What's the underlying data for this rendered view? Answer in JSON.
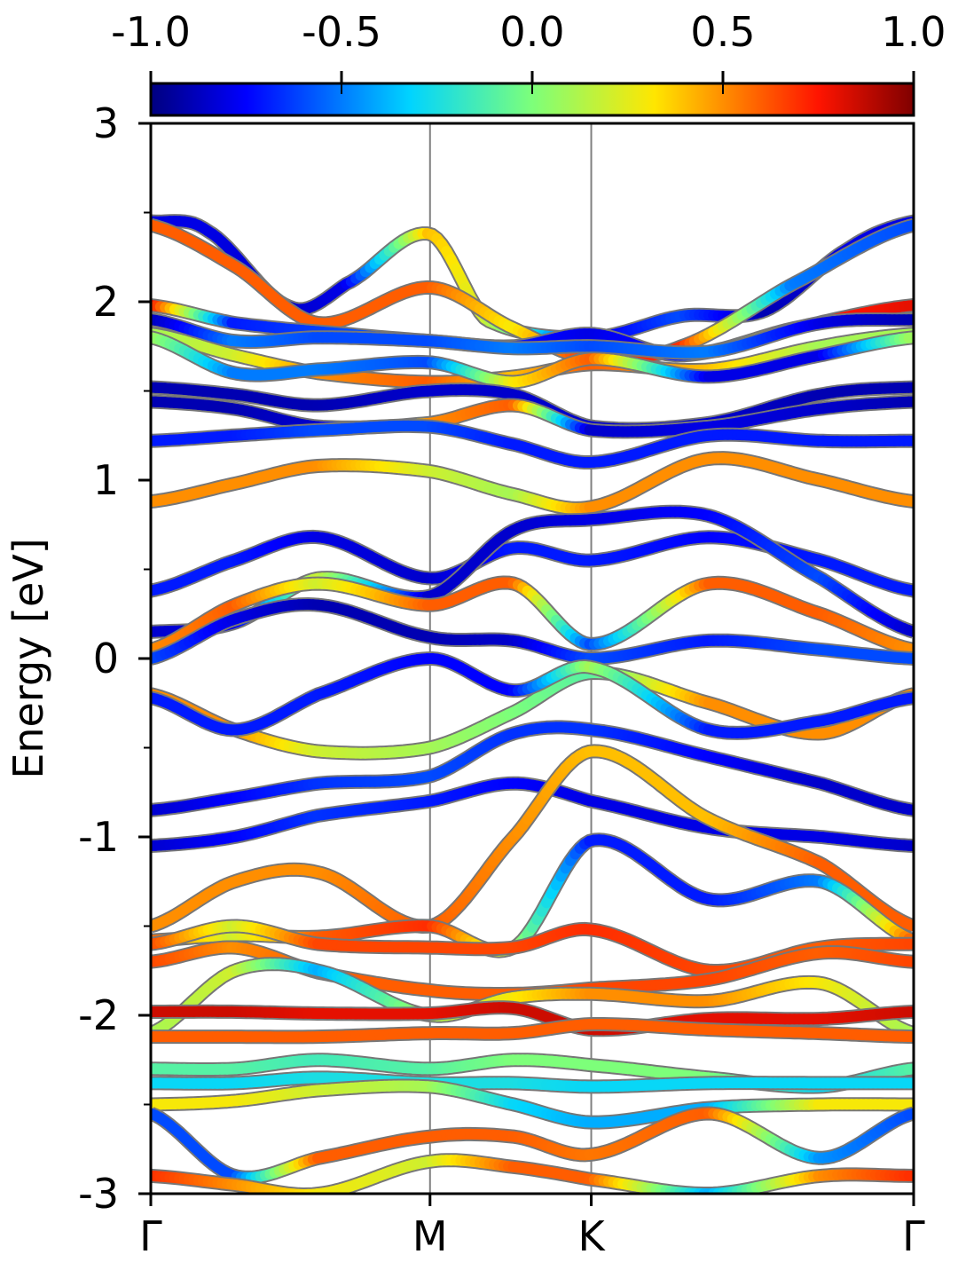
{
  "chart_data": {
    "type": "line",
    "ylabel": "Energy [eV]",
    "xlabel": "",
    "ylim": [
      -3,
      3
    ],
    "yticks": [
      "3",
      "2",
      "1",
      "0",
      "-1",
      "-2",
      "-3"
    ],
    "ytick_values": [
      3,
      2,
      1,
      0,
      -1,
      -2,
      -3
    ],
    "minor_ytick_step": 0.5,
    "kpath": {
      "labels": [
        "Γ",
        "M",
        "K",
        "Γ"
      ],
      "positions": [
        0,
        1,
        1.5774,
        2.7321
      ]
    },
    "colorbar": {
      "colormap": "jet",
      "range": [
        -1.0,
        1.0
      ],
      "ticks": [
        "-1.0",
        "-0.5",
        "0.0",
        "0.5",
        "1.0"
      ],
      "tick_values": [
        -1.0,
        -0.5,
        0.0,
        0.5,
        1.0
      ],
      "position": "top"
    },
    "series": [
      {
        "k": [
          0,
          0.2,
          0.5,
          0.7,
          1,
          1.2,
          1.5774,
          1.9,
          2.2,
          2.5,
          2.7321
        ],
        "energy": [
          2.45,
          2.4,
          1.97,
          2.1,
          2.38,
          1.9,
          1.8,
          1.92,
          1.95,
          2.3,
          2.45
        ],
        "projection": [
          -0.8,
          -0.8,
          -0.85,
          -0.8,
          0.4,
          0.2,
          -0.8,
          -0.6,
          -0.9,
          -0.8,
          -0.8
        ]
      },
      {
        "k": [
          0,
          0.3,
          0.6,
          1,
          1.3,
          1.5774,
          1.9,
          2.3,
          2.7321
        ],
        "energy": [
          2.43,
          2.2,
          1.88,
          2.08,
          1.85,
          1.68,
          1.75,
          2.1,
          2.43
        ],
        "projection": [
          0.6,
          0.6,
          0.6,
          0.6,
          0.3,
          0.7,
          0.7,
          -0.5,
          -0.6
        ]
      },
      {
        "k": [
          0,
          0.3,
          0.7,
          1,
          1.3,
          1.5774,
          1.9,
          2.3,
          2.7321
        ],
        "energy": [
          1.98,
          1.88,
          1.82,
          1.78,
          1.75,
          1.82,
          1.7,
          1.85,
          1.98
        ],
        "projection": [
          0.8,
          -0.7,
          -0.6,
          -0.6,
          -0.7,
          -0.8,
          -0.7,
          0.7,
          0.8
        ]
      },
      {
        "k": [
          0,
          0.3,
          0.6,
          1,
          1.3,
          1.5774,
          2,
          2.4,
          2.7321
        ],
        "energy": [
          1.9,
          1.78,
          1.8,
          1.78,
          1.74,
          1.75,
          1.72,
          1.88,
          1.9
        ],
        "projection": [
          -0.9,
          -0.5,
          -0.6,
          -0.6,
          -0.5,
          -0.6,
          -0.5,
          -0.8,
          -0.9
        ]
      },
      {
        "k": [
          0,
          0.3,
          0.6,
          1,
          1.3,
          1.5774,
          2,
          2.4,
          2.7321
        ],
        "energy": [
          1.82,
          1.7,
          1.6,
          1.55,
          1.58,
          1.65,
          1.62,
          1.75,
          1.82
        ],
        "projection": [
          0.1,
          0.2,
          0.5,
          0.6,
          0.4,
          0.6,
          0.4,
          0.1,
          0.1
        ]
      },
      {
        "k": [
          0,
          0.3,
          0.6,
          1,
          1.3,
          1.5774,
          2,
          2.4,
          2.7321
        ],
        "energy": [
          1.8,
          1.6,
          1.62,
          1.66,
          1.55,
          1.68,
          1.58,
          1.7,
          1.8
        ],
        "projection": [
          0.1,
          -0.5,
          -0.5,
          -0.6,
          0.3,
          0.6,
          -0.8,
          -0.8,
          0.1
        ]
      },
      {
        "k": [
          0,
          0.3,
          0.6,
          1,
          1.3,
          1.5774,
          2,
          2.4,
          2.7321
        ],
        "energy": [
          1.52,
          1.48,
          1.42,
          1.5,
          1.48,
          1.3,
          1.32,
          1.48,
          1.52
        ],
        "projection": [
          -0.9,
          -0.9,
          -0.9,
          -0.85,
          -0.85,
          -0.85,
          -0.85,
          -0.9,
          -0.9
        ]
      },
      {
        "k": [
          0,
          0.3,
          0.6,
          1,
          1.3,
          1.5774,
          2,
          2.4,
          2.7321
        ],
        "energy": [
          1.44,
          1.4,
          1.3,
          1.32,
          1.42,
          1.28,
          1.3,
          1.4,
          1.44
        ],
        "projection": [
          -0.9,
          -0.9,
          -0.85,
          0.5,
          0.6,
          -0.85,
          -0.8,
          -0.85,
          -0.9
        ]
      },
      {
        "k": [
          0,
          0.3,
          0.6,
          1,
          1.3,
          1.5774,
          2,
          2.4,
          2.7321
        ],
        "energy": [
          1.22,
          1.25,
          1.28,
          1.3,
          1.2,
          1.1,
          1.25,
          1.22,
          1.22
        ],
        "projection": [
          -0.7,
          -0.7,
          -0.6,
          -0.6,
          -0.7,
          -0.7,
          -0.7,
          -0.7,
          -0.7
        ]
      },
      {
        "k": [
          0,
          0.3,
          0.6,
          1,
          1.3,
          1.5774,
          2,
          2.4,
          2.7321
        ],
        "energy": [
          0.88,
          0.98,
          1.08,
          1.05,
          0.92,
          0.85,
          1.12,
          1.0,
          0.88
        ],
        "projection": [
          0.5,
          0.5,
          0.5,
          0.2,
          0.1,
          0.5,
          0.5,
          0.5,
          0.5
        ]
      },
      {
        "k": [
          0,
          0.3,
          0.6,
          1,
          1.3,
          1.5774,
          2,
          2.4,
          2.7321
        ],
        "energy": [
          0.38,
          0.55,
          0.68,
          0.45,
          0.62,
          0.55,
          0.68,
          0.55,
          0.38
        ],
        "projection": [
          -0.7,
          -0.7,
          -0.8,
          -0.85,
          -0.7,
          -0.7,
          -0.75,
          -0.7,
          -0.7
        ]
      },
      {
        "k": [
          0,
          0.3,
          0.6,
          1,
          1.3,
          1.5774,
          2,
          2.4,
          2.7321
        ],
        "energy": [
          0.15,
          0.2,
          0.45,
          0.35,
          0.72,
          0.78,
          0.8,
          0.45,
          0.15
        ],
        "projection": [
          -0.85,
          -0.8,
          0.2,
          -0.85,
          -0.85,
          -0.8,
          -0.75,
          -0.6,
          -0.85
        ]
      },
      {
        "k": [
          0,
          0.3,
          0.6,
          1,
          1.3,
          1.5774,
          2,
          2.4,
          2.7321
        ],
        "energy": [
          0.05,
          0.3,
          0.42,
          0.3,
          0.42,
          0.08,
          0.42,
          0.25,
          0.05
        ],
        "projection": [
          0.5,
          0.6,
          0.2,
          0.6,
          0.6,
          -0.6,
          0.6,
          0.6,
          0.5
        ]
      },
      {
        "k": [
          0,
          0.3,
          0.6,
          1,
          1.3,
          1.5774,
          2,
          2.4,
          2.7321
        ],
        "energy": [
          0.0,
          0.22,
          0.3,
          0.12,
          0.1,
          0.0,
          0.1,
          0.05,
          0.0
        ],
        "projection": [
          -0.6,
          -0.8,
          -0.9,
          -0.9,
          -0.85,
          -0.6,
          -0.7,
          -0.6,
          -0.6
        ]
      },
      {
        "k": [
          0,
          0.3,
          0.6,
          1,
          1.3,
          1.5774,
          2,
          2.4,
          2.7321
        ],
        "energy": [
          -0.2,
          -0.4,
          -0.52,
          -0.5,
          -0.3,
          -0.08,
          -0.25,
          -0.42,
          -0.2
        ],
        "projection": [
          0.5,
          0.5,
          0.2,
          0.1,
          0.0,
          -0.1,
          0.5,
          0.5,
          0.5
        ]
      },
      {
        "k": [
          0,
          0.3,
          0.6,
          1,
          1.3,
          1.5774,
          2,
          2.4,
          2.7321
        ],
        "energy": [
          -0.22,
          -0.4,
          -0.2,
          0.0,
          -0.18,
          -0.05,
          -0.4,
          -0.35,
          -0.22
        ],
        "projection": [
          -0.7,
          -0.7,
          -0.7,
          -0.75,
          -0.75,
          0.1,
          -0.7,
          -0.7,
          -0.7
        ]
      },
      {
        "k": [
          0,
          0.3,
          0.6,
          1,
          1.3,
          1.5774,
          2,
          2.4,
          2.7321
        ],
        "energy": [
          -0.85,
          -0.78,
          -0.7,
          -0.66,
          -0.42,
          -0.4,
          -0.55,
          -0.7,
          -0.85
        ],
        "projection": [
          -0.85,
          -0.75,
          -0.65,
          -0.6,
          -0.65,
          -0.65,
          -0.75,
          -0.85,
          -0.85
        ]
      },
      {
        "k": [
          0,
          0.3,
          0.6,
          1,
          1.3,
          1.5774,
          2,
          2.4,
          2.7321
        ],
        "energy": [
          -1.05,
          -1.0,
          -0.88,
          -0.8,
          -0.7,
          -0.8,
          -0.95,
          -1.0,
          -1.05
        ],
        "projection": [
          -0.85,
          -0.75,
          -0.65,
          -0.7,
          -0.75,
          -0.8,
          -0.8,
          -0.8,
          -0.85
        ]
      },
      {
        "k": [
          0,
          0.3,
          0.6,
          1,
          1.3,
          1.5774,
          2,
          2.4,
          2.7321
        ],
        "energy": [
          -1.5,
          -1.25,
          -1.2,
          -1.5,
          -1.0,
          -0.52,
          -0.9,
          -1.15,
          -1.5
        ],
        "projection": [
          0.5,
          0.5,
          0.5,
          0.6,
          0.5,
          0.4,
          0.4,
          0.6,
          0.6
        ]
      },
      {
        "k": [
          0,
          0.3,
          0.6,
          1,
          1.3,
          1.5774,
          2,
          2.4,
          2.7321
        ],
        "energy": [
          -1.58,
          -1.55,
          -1.56,
          -1.5,
          -1.62,
          -1.02,
          -1.35,
          -1.25,
          -1.58
        ],
        "projection": [
          0.6,
          0.2,
          0.6,
          0.7,
          0.1,
          -0.7,
          -0.7,
          -0.5,
          0.6
        ]
      },
      {
        "k": [
          0,
          0.3,
          0.6,
          1,
          1.3,
          1.5774,
          2,
          2.4,
          2.7321
        ],
        "energy": [
          -1.6,
          -1.5,
          -1.6,
          -1.62,
          -1.62,
          -1.52,
          -1.75,
          -1.62,
          -1.6
        ],
        "projection": [
          0.65,
          0.2,
          0.65,
          0.65,
          0.65,
          0.7,
          0.65,
          0.6,
          0.65
        ]
      },
      {
        "k": [
          0,
          0.3,
          0.6,
          1,
          1.3,
          1.5774,
          2,
          2.4,
          2.7321
        ],
        "energy": [
          -1.7,
          -1.62,
          -1.76,
          -1.86,
          -1.88,
          -1.85,
          -1.8,
          -1.65,
          -1.7
        ],
        "projection": [
          0.65,
          0.5,
          0.6,
          0.6,
          0.6,
          0.65,
          0.65,
          0.6,
          0.65
        ]
      },
      {
        "k": [
          0,
          0.3,
          0.6,
          1,
          1.3,
          1.5774,
          2,
          2.4,
          2.7321
        ],
        "energy": [
          -2.1,
          -1.75,
          -1.75,
          -2.0,
          -1.9,
          -1.88,
          -1.92,
          -1.82,
          -2.1
        ],
        "projection": [
          0.1,
          0.2,
          -0.4,
          0.1,
          0.3,
          0.5,
          0.5,
          0.3,
          0.1
        ]
      },
      {
        "k": [
          0,
          0.3,
          0.6,
          1,
          1.3,
          1.5774,
          2,
          2.4,
          2.7321
        ],
        "energy": [
          -1.98,
          -1.98,
          -1.99,
          -1.99,
          -1.96,
          -2.08,
          -2.02,
          -2.02,
          -1.98
        ],
        "projection": [
          0.85,
          0.85,
          0.8,
          0.8,
          0.85,
          0.85,
          0.8,
          0.8,
          0.85
        ]
      },
      {
        "k": [
          0,
          0.3,
          0.6,
          1,
          1.3,
          1.5774,
          2,
          2.4,
          2.7321
        ],
        "energy": [
          -2.12,
          -2.12,
          -2.12,
          -2.1,
          -2.1,
          -2.05,
          -2.08,
          -2.1,
          -2.12
        ],
        "projection": [
          0.6,
          0.6,
          0.6,
          0.6,
          0.6,
          0.6,
          0.6,
          0.6,
          0.6
        ]
      },
      {
        "k": [
          0,
          0.3,
          0.6,
          1,
          1.3,
          1.5774,
          2,
          2.4,
          2.7321
        ],
        "energy": [
          -2.3,
          -2.3,
          -2.25,
          -2.3,
          -2.25,
          -2.28,
          -2.35,
          -2.4,
          -2.3
        ],
        "projection": [
          -0.1,
          -0.1,
          -0.15,
          -0.1,
          0.0,
          0.0,
          0.0,
          -0.3,
          -0.1
        ]
      },
      {
        "k": [
          0,
          0.3,
          0.6,
          1,
          1.3,
          1.5774,
          2,
          2.4,
          2.7321
        ],
        "energy": [
          -2.38,
          -2.38,
          -2.35,
          -2.38,
          -2.38,
          -2.4,
          -2.38,
          -2.38,
          -2.38
        ],
        "projection": [
          -0.3,
          -0.3,
          -0.25,
          -0.25,
          -0.25,
          -0.3,
          -0.3,
          -0.3,
          -0.3
        ]
      },
      {
        "k": [
          0,
          0.3,
          0.6,
          1,
          1.3,
          1.5774,
          2,
          2.4,
          2.7321
        ],
        "energy": [
          -2.5,
          -2.48,
          -2.42,
          -2.4,
          -2.5,
          -2.6,
          -2.52,
          -2.5,
          -2.5
        ],
        "projection": [
          0.3,
          0.3,
          0.2,
          0.1,
          -0.3,
          -0.4,
          -0.4,
          0.3,
          0.3
        ]
      },
      {
        "k": [
          0,
          0.3,
          0.6,
          1,
          1.3,
          1.5774,
          2,
          2.4,
          2.7321
        ],
        "energy": [
          -2.55,
          -2.9,
          -2.8,
          -2.68,
          -2.68,
          -2.78,
          -2.55,
          -2.8,
          -2.55
        ],
        "projection": [
          -0.6,
          -0.6,
          0.6,
          0.6,
          0.6,
          0.55,
          0.6,
          -0.45,
          -0.6
        ]
      },
      {
        "k": [
          0,
          0.3,
          0.6,
          1,
          1.3,
          1.5774,
          2,
          2.4,
          2.7321
        ],
        "energy": [
          -2.9,
          -2.95,
          -3.0,
          -2.82,
          -2.85,
          -2.92,
          -3.0,
          -2.9,
          -2.9
        ],
        "projection": [
          0.7,
          0.5,
          0.3,
          0.2,
          0.6,
          0.6,
          -0.4,
          0.5,
          0.7
        ]
      }
    ]
  }
}
